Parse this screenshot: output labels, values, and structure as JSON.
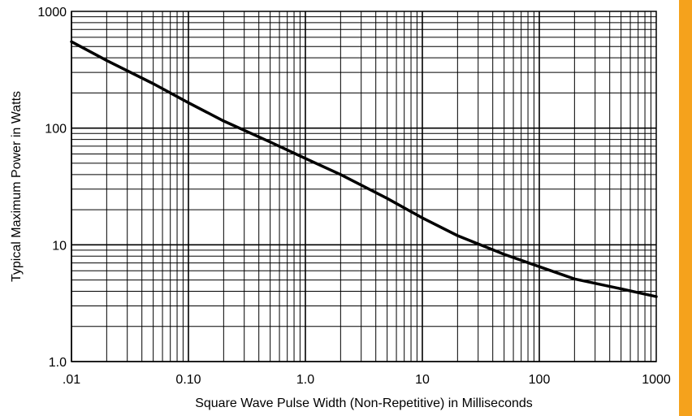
{
  "accent_color": "#f5a21c",
  "chart_data": {
    "type": "line",
    "title": "",
    "xlabel": "Square Wave Pulse Width (Non-Repetitive) in Milliseconds",
    "ylabel": "Typical Maximum Power in Watts",
    "x_scale": "log",
    "y_scale": "log",
    "xlim": [
      0.01,
      1000
    ],
    "ylim": [
      1,
      1000
    ],
    "grid": true,
    "legend": "none",
    "x_tick_labels": [
      ".01",
      "0.10",
      "1.0",
      "10",
      "100",
      "1000"
    ],
    "y_tick_labels": [
      "1.0",
      "10",
      "100",
      "1000"
    ],
    "line_color": "#000000",
    "series": [
      {
        "x": [
          0.01,
          0.02,
          0.05,
          0.1,
          0.2,
          0.5,
          1,
          2,
          5,
          10,
          20,
          50,
          100,
          200,
          500,
          1000
        ],
        "y": [
          550,
          380,
          240,
          165,
          115,
          76,
          55,
          40,
          25,
          17,
          12,
          8.3,
          6.5,
          5.1,
          4.2,
          3.6
        ]
      }
    ]
  }
}
